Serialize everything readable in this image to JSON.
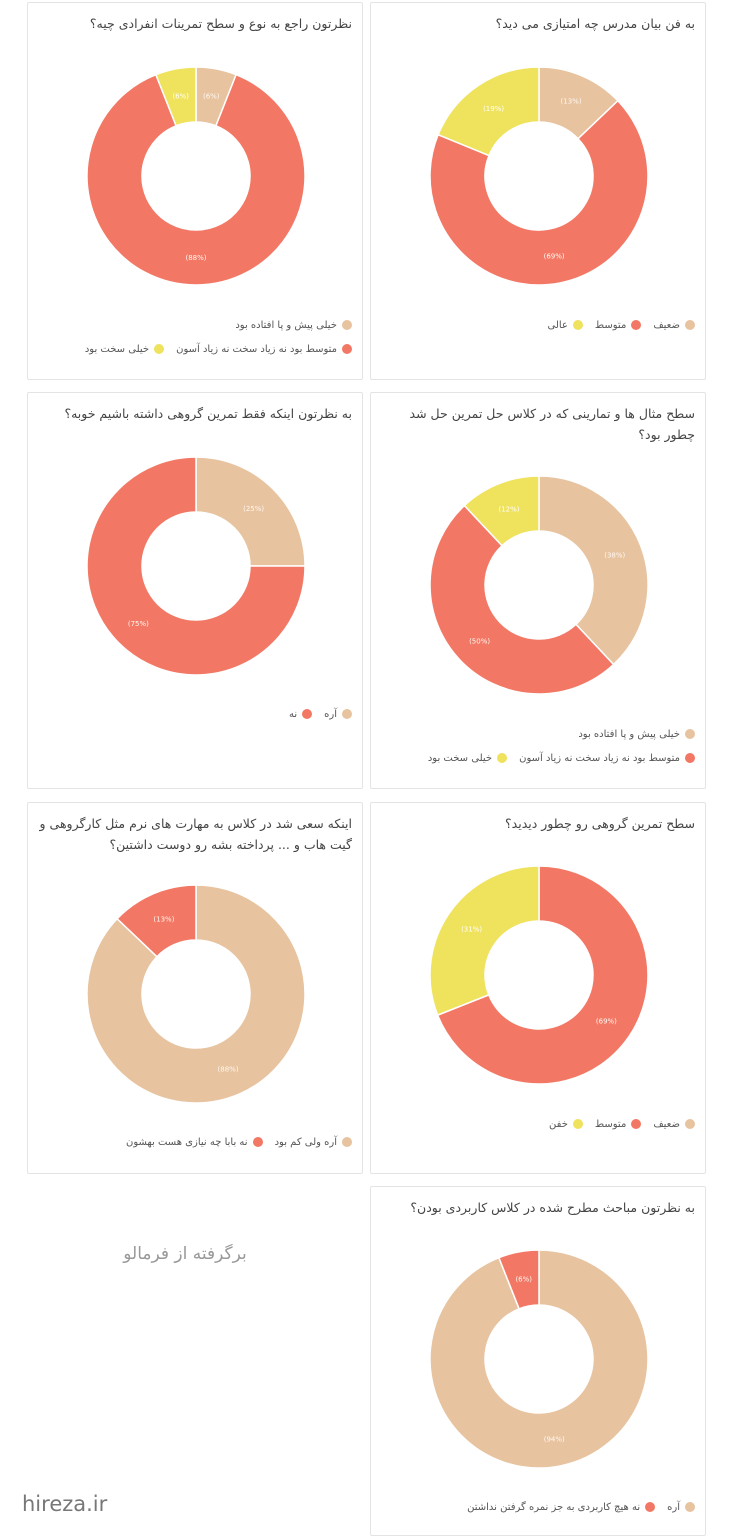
{
  "colors": {
    "tan": "#e7c39f",
    "coral": "#f27865",
    "yellow": "#efe25d"
  },
  "credit_text": "برگرفته از فرمالو",
  "watermark": "hireza.ir",
  "chart_data": [
    {
      "id": "teacher-rating",
      "type": "pie",
      "title": "به فن بیان مدرس چه امتیازی می دید؟",
      "slices": [
        {
          "label": "ضعیف",
          "value": 13,
          "display": "(13%)",
          "color": "#e7c39f"
        },
        {
          "label": "متوسط",
          "value": 69,
          "display": "(69%)",
          "color": "#f27865"
        },
        {
          "label": "عالی",
          "value": 19,
          "display": "(19%)",
          "color": "#efe25d"
        }
      ],
      "legend_rows": [
        [
          0,
          1,
          2
        ]
      ]
    },
    {
      "id": "individual-exercises",
      "type": "pie",
      "title": "نظرتون راجع به نوع و سطح تمرینات انفرادی چیه؟",
      "slices": [
        {
          "label": "خیلی پیش و پا افتاده بود",
          "value": 6,
          "display": "(6%)",
          "color": "#e7c39f"
        },
        {
          "label": "متوسط بود نه زیاد سخت نه زیاد آسون",
          "value": 88,
          "display": "(88%)",
          "color": "#f27865"
        },
        {
          "label": "خیلی سخت بود",
          "value": 6,
          "display": "(6%)",
          "color": "#efe25d"
        }
      ],
      "legend_rows": [
        [
          0
        ],
        [
          1,
          2
        ]
      ]
    },
    {
      "id": "class-examples",
      "type": "pie",
      "title": "سطح مثال ها و تمارینی که در کلاس حل تمرین حل شد چطور بود؟",
      "slices": [
        {
          "label": "خیلی پیش و پا افتاده بود",
          "value": 38,
          "display": "(38%)",
          "color": "#e7c39f"
        },
        {
          "label": "متوسط بود نه زیاد سخت نه زیاد آسون",
          "value": 50,
          "display": "(50%)",
          "color": "#f27865"
        },
        {
          "label": "خیلی سخت بود",
          "value": 12,
          "display": "(12%)",
          "color": "#efe25d"
        }
      ],
      "legend_rows": [
        [
          0
        ],
        [
          1,
          2
        ]
      ]
    },
    {
      "id": "group-only",
      "type": "pie",
      "title": "به نظرتون اینکه فقط تمرین گروهی داشته باشیم خوبه؟",
      "slices": [
        {
          "label": "آره",
          "value": 25,
          "display": "(25%)",
          "color": "#e7c39f"
        },
        {
          "label": "نه",
          "value": 75,
          "display": "(75%)",
          "color": "#f27865"
        }
      ],
      "legend_rows": [
        [
          0,
          1
        ]
      ]
    },
    {
      "id": "group-exercise-level",
      "type": "pie",
      "title": "سطح تمرین گروهی رو چطور دیدید؟",
      "slices": [
        {
          "label": "ضعیف",
          "value": 0,
          "display": "",
          "color": "#e7c39f"
        },
        {
          "label": "متوسط",
          "value": 69,
          "display": "(69%)",
          "color": "#f27865"
        },
        {
          "label": "خفن",
          "value": 31,
          "display": "(31%)",
          "color": "#efe25d"
        }
      ],
      "legend_rows": [
        [
          0,
          1,
          2
        ]
      ]
    },
    {
      "id": "soft-skills",
      "type": "pie",
      "title": "اینکه سعی شد در کلاس به مهارت های نرم مثل کارگروهی و گیت هاب و ... پرداخته بشه رو دوست داشتین؟",
      "slices": [
        {
          "label": "آره ولی کم بود",
          "value": 88,
          "display": "(88%)",
          "color": "#e7c39f"
        },
        {
          "label": "نه بابا چه نیازی هست بهشون",
          "value": 13,
          "display": "(13%)",
          "color": "#f27865"
        }
      ],
      "legend_rows": [
        [
          0,
          1
        ]
      ]
    },
    {
      "id": "practicality",
      "type": "pie",
      "title": "به نظرتون مباحث مطرح شده در کلاس کاربردی بودن؟",
      "slices": [
        {
          "label": "آره",
          "value": 94,
          "display": "(94%)",
          "color": "#e7c39f"
        },
        {
          "label": "نه هیچ کاربردی به جز نمره گرفتن نداشتن",
          "value": 6,
          "display": "(6%)",
          "color": "#f27865"
        }
      ],
      "legend_rows": [
        [
          0,
          1
        ]
      ]
    }
  ]
}
